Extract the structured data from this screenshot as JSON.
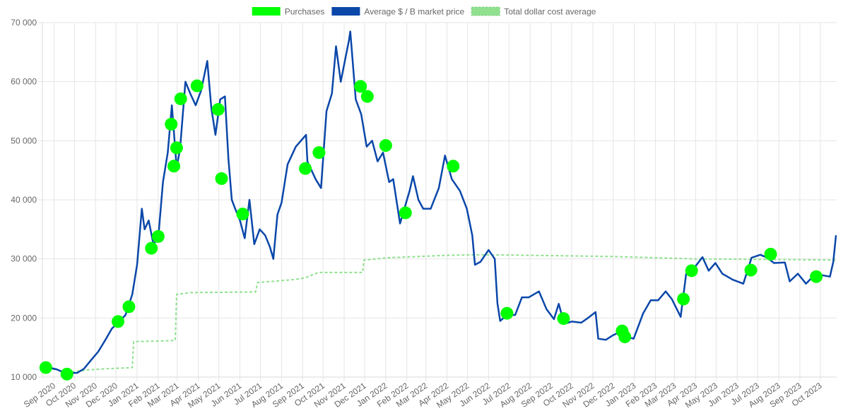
{
  "chart_data": {
    "type": "line",
    "legend": {
      "placement": "top-center",
      "items": [
        {
          "name": "Purchases",
          "color": "#00ff00",
          "style": "solid"
        },
        {
          "name": "Average $ / B market price",
          "color": "#0a47a9",
          "style": "solid"
        },
        {
          "name": "Total dollar cost average",
          "color": "#90e090",
          "style": "dashed"
        }
      ]
    },
    "grid": true,
    "ylim": [
      10000,
      70000
    ],
    "y_ticks": [
      {
        "value": 10000,
        "label": "10 000"
      },
      {
        "value": 20000,
        "label": "20 000"
      },
      {
        "value": 30000,
        "label": "30 000"
      },
      {
        "value": 40000,
        "label": "40 000"
      },
      {
        "value": 50000,
        "label": "50 000"
      },
      {
        "value": 60000,
        "label": "60 000"
      },
      {
        "value": 70000,
        "label": "70 000"
      }
    ],
    "x_range": [
      "2020-08-15",
      "2023-10-25"
    ],
    "x_ticks": [
      {
        "date": "2020-09-01",
        "label": "Sep 2020"
      },
      {
        "date": "2020-10-01",
        "label": "Oct 2020"
      },
      {
        "date": "2020-11-01",
        "label": "Nov 2020"
      },
      {
        "date": "2020-12-01",
        "label": "Dec 2020"
      },
      {
        "date": "2021-01-01",
        "label": "Jan 2021"
      },
      {
        "date": "2021-02-01",
        "label": "Feb 2021"
      },
      {
        "date": "2021-03-01",
        "label": "Mar 2021"
      },
      {
        "date": "2021-04-01",
        "label": "Apr 2021"
      },
      {
        "date": "2021-05-01",
        "label": "May 2021"
      },
      {
        "date": "2021-06-01",
        "label": "Jun 2021"
      },
      {
        "date": "2021-07-01",
        "label": "Jul 2021"
      },
      {
        "date": "2021-08-01",
        "label": "Aug 2021"
      },
      {
        "date": "2021-09-01",
        "label": "Sep 2021"
      },
      {
        "date": "2021-10-01",
        "label": "Oct 2021"
      },
      {
        "date": "2021-11-01",
        "label": "Nov 2021"
      },
      {
        "date": "2021-12-01",
        "label": "Dec 2021"
      },
      {
        "date": "2022-01-01",
        "label": "Jan 2022"
      },
      {
        "date": "2022-02-01",
        "label": "Feb 2022"
      },
      {
        "date": "2022-03-01",
        "label": "Mar 2022"
      },
      {
        "date": "2022-04-01",
        "label": "Apr 2022"
      },
      {
        "date": "2022-05-01",
        "label": "May 2022"
      },
      {
        "date": "2022-06-01",
        "label": "Jun 2022"
      },
      {
        "date": "2022-07-01",
        "label": "Jul 2022"
      },
      {
        "date": "2022-08-01",
        "label": "Aug 2022"
      },
      {
        "date": "2022-09-01",
        "label": "Sep 2022"
      },
      {
        "date": "2022-10-01",
        "label": "Oct 2022"
      },
      {
        "date": "2022-11-01",
        "label": "Nov 2022"
      },
      {
        "date": "2022-12-01",
        "label": "Dec 2022"
      },
      {
        "date": "2023-01-01",
        "label": "Jan 2023"
      },
      {
        "date": "2023-02-01",
        "label": "Feb 2023"
      },
      {
        "date": "2023-03-01",
        "label": "Mar 2023"
      },
      {
        "date": "2023-04-01",
        "label": "Apr 2023"
      },
      {
        "date": "2023-05-01",
        "label": "May 2023"
      },
      {
        "date": "2023-06-01",
        "label": "Jun 2023"
      },
      {
        "date": "2023-07-01",
        "label": "Jul 2023"
      },
      {
        "date": "2023-08-01",
        "label": "Aug 2023"
      },
      {
        "date": "2023-09-01",
        "label": "Sep 2023"
      },
      {
        "date": "2023-10-01",
        "label": "Oct 2023"
      }
    ],
    "series": [
      {
        "name": "Average $ / B market price",
        "color": "#0a47a9",
        "points": [
          [
            "2020-08-15",
            11900
          ],
          [
            "2020-08-25",
            11600
          ],
          [
            "2020-09-05",
            11300
          ],
          [
            "2020-09-15",
            10800
          ],
          [
            "2020-09-25",
            10700
          ],
          [
            "2020-10-05",
            10700
          ],
          [
            "2020-10-15",
            11400
          ],
          [
            "2020-10-25",
            12800
          ],
          [
            "2020-11-05",
            14300
          ],
          [
            "2020-11-15",
            16200
          ],
          [
            "2020-11-25",
            18200
          ],
          [
            "2020-12-05",
            19300
          ],
          [
            "2020-12-15",
            20500
          ],
          [
            "2020-12-25",
            24000
          ],
          [
            "2021-01-01",
            29000
          ],
          [
            "2021-01-08",
            38500
          ],
          [
            "2021-01-12",
            35000
          ],
          [
            "2021-01-18",
            36500
          ],
          [
            "2021-01-25",
            32500
          ],
          [
            "2021-02-01",
            33500
          ],
          [
            "2021-02-08",
            43000
          ],
          [
            "2021-02-15",
            48000
          ],
          [
            "2021-02-21",
            56000
          ],
          [
            "2021-02-28",
            45500
          ],
          [
            "2021-03-05",
            48500
          ],
          [
            "2021-03-13",
            60000
          ],
          [
            "2021-03-20",
            58000
          ],
          [
            "2021-03-28",
            56000
          ],
          [
            "2021-04-05",
            58500
          ],
          [
            "2021-04-14",
            63500
          ],
          [
            "2021-04-20",
            55500
          ],
          [
            "2021-04-26",
            51000
          ],
          [
            "2021-05-03",
            57000
          ],
          [
            "2021-05-10",
            57500
          ],
          [
            "2021-05-15",
            47000
          ],
          [
            "2021-05-20",
            40000
          ],
          [
            "2021-05-25",
            38500
          ],
          [
            "2021-06-01",
            36500
          ],
          [
            "2021-06-08",
            33500
          ],
          [
            "2021-06-15",
            40000
          ],
          [
            "2021-06-22",
            32500
          ],
          [
            "2021-06-30",
            35000
          ],
          [
            "2021-07-08",
            34000
          ],
          [
            "2021-07-15",
            32000
          ],
          [
            "2021-07-20",
            30000
          ],
          [
            "2021-07-26",
            37500
          ],
          [
            "2021-08-01",
            39500
          ],
          [
            "2021-08-10",
            46000
          ],
          [
            "2021-08-22",
            49000
          ],
          [
            "2021-09-06",
            51000
          ],
          [
            "2021-09-08",
            46500
          ],
          [
            "2021-09-20",
            43500
          ],
          [
            "2021-09-28",
            42000
          ],
          [
            "2021-10-06",
            55000
          ],
          [
            "2021-10-14",
            58000
          ],
          [
            "2021-10-20",
            66000
          ],
          [
            "2021-10-27",
            60000
          ],
          [
            "2021-11-08",
            67000
          ],
          [
            "2021-11-10",
            68500
          ],
          [
            "2021-11-18",
            57000
          ],
          [
            "2021-11-26",
            54500
          ],
          [
            "2021-12-04",
            49000
          ],
          [
            "2021-12-12",
            50000
          ],
          [
            "2021-12-20",
            46500
          ],
          [
            "2021-12-28",
            48000
          ],
          [
            "2022-01-06",
            43000
          ],
          [
            "2022-01-12",
            43500
          ],
          [
            "2022-01-22",
            36000
          ],
          [
            "2022-02-05",
            41500
          ],
          [
            "2022-02-10",
            44000
          ],
          [
            "2022-02-18",
            40000
          ],
          [
            "2022-02-25",
            38500
          ],
          [
            "2022-03-08",
            38500
          ],
          [
            "2022-03-20",
            42000
          ],
          [
            "2022-03-29",
            47500
          ],
          [
            "2022-04-08",
            43500
          ],
          [
            "2022-04-20",
            41500
          ],
          [
            "2022-04-30",
            38500
          ],
          [
            "2022-05-08",
            34000
          ],
          [
            "2022-05-12",
            29000
          ],
          [
            "2022-05-20",
            29500
          ],
          [
            "2022-06-01",
            31500
          ],
          [
            "2022-06-10",
            30000
          ],
          [
            "2022-06-14",
            22500
          ],
          [
            "2022-06-18",
            19500
          ],
          [
            "2022-06-28",
            20500
          ],
          [
            "2022-07-10",
            20500
          ],
          [
            "2022-07-20",
            23500
          ],
          [
            "2022-07-30",
            23500
          ],
          [
            "2022-08-14",
            24500
          ],
          [
            "2022-08-25",
            21500
          ],
          [
            "2022-09-05",
            19800
          ],
          [
            "2022-09-12",
            22400
          ],
          [
            "2022-09-20",
            19000
          ],
          [
            "2022-10-01",
            19400
          ],
          [
            "2022-10-15",
            19200
          ],
          [
            "2022-10-25",
            20000
          ],
          [
            "2022-11-05",
            21000
          ],
          [
            "2022-11-09",
            16500
          ],
          [
            "2022-11-20",
            16300
          ],
          [
            "2022-12-01",
            17100
          ],
          [
            "2022-12-14",
            17800
          ],
          [
            "2022-12-20",
            16800
          ],
          [
            "2022-12-31",
            16500
          ],
          [
            "2023-01-14",
            20800
          ],
          [
            "2023-01-25",
            23000
          ],
          [
            "2023-02-05",
            23000
          ],
          [
            "2023-02-16",
            24500
          ],
          [
            "2023-02-25",
            23200
          ],
          [
            "2023-03-10",
            20200
          ],
          [
            "2023-03-18",
            27500
          ],
          [
            "2023-03-30",
            28500
          ],
          [
            "2023-04-11",
            30300
          ],
          [
            "2023-04-20",
            28000
          ],
          [
            "2023-04-30",
            29300
          ],
          [
            "2023-05-10",
            27500
          ],
          [
            "2023-05-25",
            26500
          ],
          [
            "2023-06-10",
            25800
          ],
          [
            "2023-06-22",
            30200
          ],
          [
            "2023-07-05",
            30700
          ],
          [
            "2023-07-15",
            30200
          ],
          [
            "2023-07-25",
            29300
          ],
          [
            "2023-08-10",
            29400
          ],
          [
            "2023-08-17",
            26200
          ],
          [
            "2023-08-29",
            27500
          ],
          [
            "2023-09-10",
            25800
          ],
          [
            "2023-09-20",
            27000
          ],
          [
            "2023-10-01",
            27300
          ],
          [
            "2023-10-15",
            27000
          ],
          [
            "2023-10-20",
            29500
          ],
          [
            "2023-10-24",
            34000
          ]
        ]
      },
      {
        "name": "Total dollar cost average",
        "color": "#90e090",
        "style": "dashed",
        "points": [
          [
            "2020-08-15",
            11500
          ],
          [
            "2020-09-01",
            11300
          ],
          [
            "2020-09-15",
            11000
          ],
          [
            "2020-10-01",
            10900
          ],
          [
            "2020-10-20",
            11200
          ],
          [
            "2020-11-15",
            11400
          ],
          [
            "2020-12-05",
            11500
          ],
          [
            "2020-12-25",
            11600
          ],
          [
            "2020-12-27",
            16000
          ],
          [
            "2021-02-01",
            16100
          ],
          [
            "2021-02-26",
            16200
          ],
          [
            "2021-02-28",
            24000
          ],
          [
            "2021-03-20",
            24300
          ],
          [
            "2021-06-24",
            24400
          ],
          [
            "2021-06-27",
            26000
          ],
          [
            "2021-08-20",
            26500
          ],
          [
            "2021-09-05",
            26800
          ],
          [
            "2021-09-24",
            27700
          ],
          [
            "2021-11-28",
            27700
          ],
          [
            "2021-11-30",
            29800
          ],
          [
            "2022-01-05",
            30200
          ],
          [
            "2022-04-01",
            30600
          ],
          [
            "2022-05-20",
            30700
          ],
          [
            "2022-08-01",
            30600
          ],
          [
            "2022-12-01",
            30400
          ],
          [
            "2023-04-01",
            30000
          ],
          [
            "2023-08-01",
            29900
          ],
          [
            "2023-10-24",
            29800
          ]
        ]
      }
    ],
    "purchases": {
      "name": "Purchases",
      "color": "#00ff00",
      "points": [
        [
          "2020-08-20",
          11600
        ],
        [
          "2020-09-20",
          10500
        ],
        [
          "2020-12-04",
          19400
        ],
        [
          "2020-12-20",
          21900
        ],
        [
          "2021-01-22",
          31800
        ],
        [
          "2021-02-01",
          33800
        ],
        [
          "2021-02-20",
          52800
        ],
        [
          "2021-02-24",
          45700
        ],
        [
          "2021-02-28",
          48800
        ],
        [
          "2021-03-06",
          57100
        ],
        [
          "2021-03-30",
          59300
        ],
        [
          "2021-04-30",
          55300
        ],
        [
          "2021-05-05",
          43600
        ],
        [
          "2021-06-05",
          37600
        ],
        [
          "2021-09-05",
          45300
        ],
        [
          "2021-09-25",
          48000
        ],
        [
          "2021-11-25",
          59200
        ],
        [
          "2021-12-05",
          57500
        ],
        [
          "2022-01-01",
          49200
        ],
        [
          "2022-01-30",
          37800
        ],
        [
          "2022-04-10",
          45700
        ],
        [
          "2022-06-28",
          20800
        ],
        [
          "2022-09-19",
          19900
        ],
        [
          "2022-12-14",
          17800
        ],
        [
          "2022-12-18",
          16800
        ],
        [
          "2023-03-14",
          23200
        ],
        [
          "2023-03-26",
          28000
        ],
        [
          "2023-06-21",
          28100
        ],
        [
          "2023-07-20",
          30800
        ],
        [
          "2023-09-25",
          27000
        ]
      ]
    }
  }
}
